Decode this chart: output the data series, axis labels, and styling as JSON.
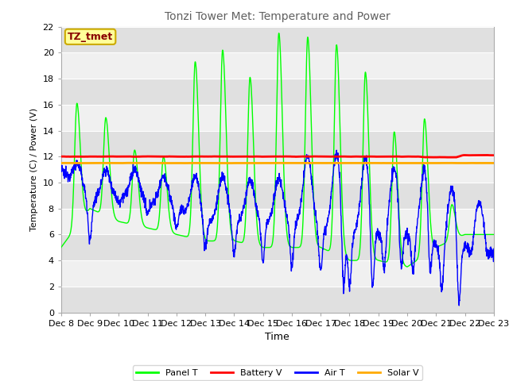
{
  "title": "Tonzi Tower Met: Temperature and Power",
  "ylabel": "Temperature (C) / Power (V)",
  "xlabel": "Time",
  "ylim": [
    0,
    22
  ],
  "yticks": [
    0,
    2,
    4,
    6,
    8,
    10,
    12,
    14,
    16,
    18,
    20,
    22
  ],
  "xtick_labels": [
    "Dec 8",
    "Dec 9",
    "Dec 10",
    "Dec 11",
    "Dec 12",
    "Dec 13",
    "Dec 14",
    "Dec 15",
    "Dec 16",
    "Dec 17",
    "Dec 18",
    "Dec 19",
    "Dec 20",
    "Dec 21",
    "Dec 22",
    "Dec 23"
  ],
  "figure_bg": "#ffffff",
  "plot_bg": "#ffffff",
  "grid_color": "#cccccc",
  "band_color_dark": "#e0e0e0",
  "band_color_light": "#f0f0f0",
  "panel_T_color": "#00ff00",
  "battery_V_color": "#ff0000",
  "air_T_color": "#0000ff",
  "solar_V_color": "#ffaa00",
  "annotation_text": "TZ_tmet",
  "annotation_bg": "#ffff99",
  "annotation_border": "#ccaa00",
  "annotation_text_color": "#880000",
  "title_color": "#606060",
  "tick_color": "#000000"
}
